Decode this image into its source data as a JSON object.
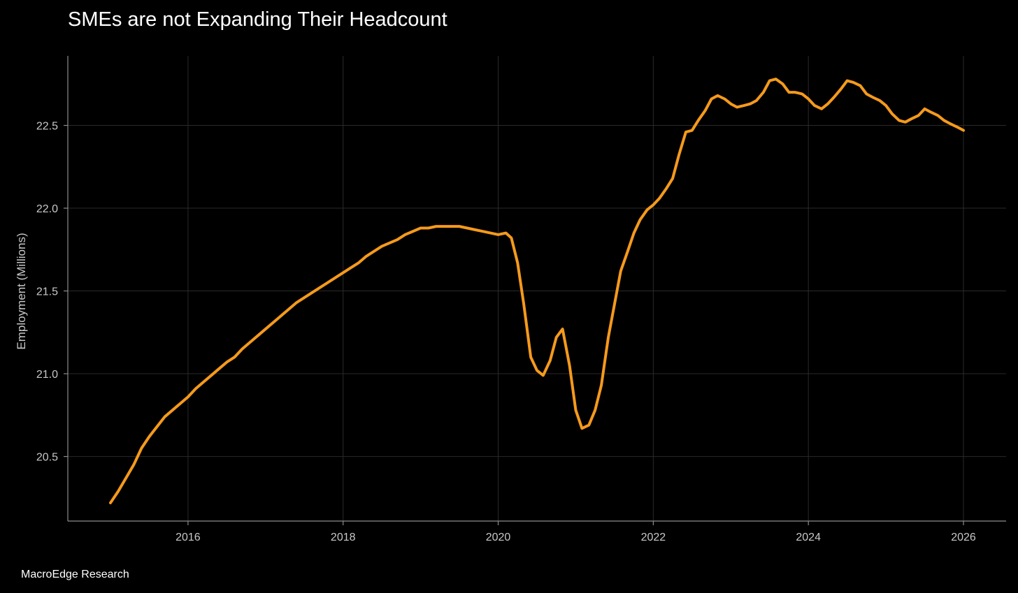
{
  "chart_data": {
    "type": "line",
    "title": "SMEs are not Expanding Their Headcount",
    "ylabel": "Employment (Millions)",
    "xlabel": "",
    "source": "MacroEdge Research",
    "x_range": [
      2014.45,
      2026.55
    ],
    "y_range": [
      20.11,
      22.92
    ],
    "x_ticks": [
      2016,
      2018,
      2020,
      2022,
      2024,
      2026
    ],
    "y_ticks": [
      20.5,
      21.0,
      21.5,
      22.0,
      22.5
    ],
    "y_tick_labels": [
      "20.5",
      "21.0",
      "21.5",
      "22.0",
      "22.5"
    ],
    "grid": true,
    "legend": "none",
    "series": [
      {
        "color": "#f59a1c",
        "x": [
          2015.0,
          2015.1,
          2015.2,
          2015.3,
          2015.4,
          2015.5,
          2015.6,
          2015.7,
          2015.8,
          2015.9,
          2016.0,
          2016.1,
          2016.2,
          2016.3,
          2016.4,
          2016.5,
          2016.6,
          2016.7,
          2016.8,
          2016.9,
          2017.0,
          2017.1,
          2017.2,
          2017.3,
          2017.4,
          2017.5,
          2017.6,
          2017.7,
          2017.8,
          2017.9,
          2018.0,
          2018.1,
          2018.2,
          2018.3,
          2018.4,
          2018.5,
          2018.6,
          2018.7,
          2018.8,
          2018.9,
          2019.0,
          2019.1,
          2019.2,
          2019.3,
          2019.4,
          2019.5,
          2019.6,
          2019.7,
          2019.8,
          2019.9,
          2020.0,
          2020.1,
          2020.17,
          2020.25,
          2020.33,
          2020.42,
          2020.5,
          2020.58,
          2020.67,
          2020.75,
          2020.83,
          2020.92,
          2021.0,
          2021.08,
          2021.17,
          2021.25,
          2021.33,
          2021.42,
          2021.5,
          2021.58,
          2021.67,
          2021.75,
          2021.83,
          2021.92,
          2022.0,
          2022.08,
          2022.17,
          2022.25,
          2022.33,
          2022.42,
          2022.5,
          2022.58,
          2022.67,
          2022.75,
          2022.83,
          2022.92,
          2023.0,
          2023.08,
          2023.17,
          2023.25,
          2023.33,
          2023.42,
          2023.5,
          2023.58,
          2023.67,
          2023.75,
          2023.83,
          2023.92,
          2024.0,
          2024.08,
          2024.17,
          2024.25,
          2024.33,
          2024.42,
          2024.5,
          2024.58,
          2024.67,
          2024.75,
          2024.83,
          2024.92,
          2025.0,
          2025.08,
          2025.17,
          2025.25,
          2025.33,
          2025.42,
          2025.5,
          2025.58,
          2025.67,
          2025.75,
          2025.83,
          2025.92,
          2026.0
        ],
        "values": [
          20.22,
          20.29,
          20.37,
          20.45,
          20.55,
          20.62,
          20.68,
          20.74,
          20.78,
          20.82,
          20.86,
          20.91,
          20.95,
          20.99,
          21.03,
          21.07,
          21.1,
          21.15,
          21.19,
          21.23,
          21.27,
          21.31,
          21.35,
          21.39,
          21.43,
          21.46,
          21.49,
          21.52,
          21.55,
          21.58,
          21.61,
          21.64,
          21.67,
          21.71,
          21.74,
          21.77,
          21.79,
          21.81,
          21.84,
          21.86,
          21.88,
          21.88,
          21.89,
          21.89,
          21.89,
          21.89,
          21.88,
          21.87,
          21.86,
          21.85,
          21.84,
          21.85,
          21.82,
          21.67,
          21.42,
          21.1,
          21.02,
          20.99,
          21.08,
          21.22,
          21.27,
          21.05,
          20.78,
          20.67,
          20.69,
          20.78,
          20.93,
          21.22,
          21.42,
          21.62,
          21.74,
          21.85,
          21.93,
          21.99,
          22.02,
          22.06,
          22.12,
          22.18,
          22.32,
          22.46,
          22.47,
          22.53,
          22.59,
          22.66,
          22.68,
          22.66,
          22.63,
          22.61,
          22.62,
          22.63,
          22.65,
          22.7,
          22.77,
          22.78,
          22.75,
          22.7,
          22.7,
          22.69,
          22.66,
          22.62,
          22.6,
          22.63,
          22.67,
          22.72,
          22.77,
          22.76,
          22.74,
          22.69,
          22.67,
          22.65,
          22.62,
          22.57,
          22.53,
          22.52,
          22.54,
          22.56,
          22.6,
          22.58,
          22.56,
          22.53,
          22.51,
          22.49,
          22.47
        ]
      }
    ]
  }
}
